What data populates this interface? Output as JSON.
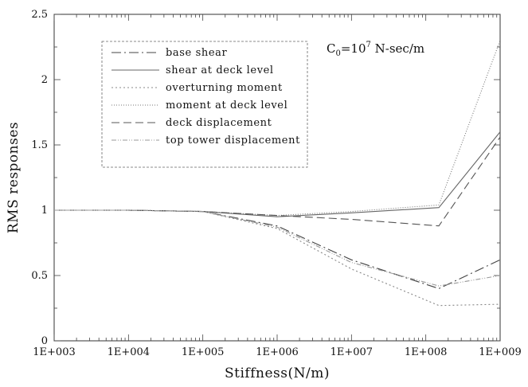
{
  "chart_data": {
    "type": "line",
    "xlabel": "Stiffness(N/m)",
    "ylabel": "RMS responses",
    "x_scale": "log",
    "x_ticks": [
      "1E+003",
      "1E+004",
      "1E+005",
      "1E+006",
      "1E+007",
      "1E+008",
      "1E+009"
    ],
    "xlim": [
      1000,
      1000000000
    ],
    "ylim": [
      0,
      2.5
    ],
    "y_ticks": [
      "0",
      "0.5",
      "1",
      "1.5",
      "2",
      "2.5"
    ],
    "annotation": {
      "base": "C",
      "sub": "0",
      "eq": "=10",
      "sup": "7",
      "unit": " N-sec/m"
    },
    "legend_position": "top-left",
    "grid": false,
    "series": [
      {
        "name": "base shear",
        "color": "#444444",
        "dash": "12,4,2,4",
        "x": [
          1000,
          10000,
          100000,
          1000000,
          10000000,
          150000000,
          1000000000
        ],
        "y": [
          1.0,
          1.0,
          0.99,
          0.88,
          0.62,
          0.4,
          0.62
        ]
      },
      {
        "name": "shear at deck level",
        "color": "#666666",
        "dash": "none",
        "x": [
          1000,
          10000,
          100000,
          1000000,
          10000000,
          150000000,
          1000000000
        ],
        "y": [
          1.0,
          1.0,
          0.99,
          0.95,
          0.98,
          1.02,
          1.6
        ]
      },
      {
        "name": "overturning moment",
        "color": "#888888",
        "dash": "2,3",
        "x": [
          1000,
          10000,
          100000,
          1000000,
          10000000,
          150000000,
          1000000000
        ],
        "y": [
          1.0,
          1.0,
          0.99,
          0.86,
          0.55,
          0.27,
          0.28
        ]
      },
      {
        "name": "moment at deck level",
        "color": "#777777",
        "dash": "1,2",
        "x": [
          1000,
          10000,
          100000,
          1000000,
          10000000,
          150000000,
          1000000000
        ],
        "y": [
          1.0,
          1.0,
          0.99,
          0.96,
          0.99,
          1.04,
          2.3
        ]
      },
      {
        "name": "deck displacement",
        "color": "#555555",
        "dash": "10,5",
        "x": [
          1000,
          10000,
          100000,
          1000000,
          10000000,
          150000000,
          1000000000
        ],
        "y": [
          1.0,
          1.0,
          0.99,
          0.96,
          0.93,
          0.88,
          1.56
        ]
      },
      {
        "name": "top tower displacement",
        "color": "#999999",
        "dash": "6,2,1,2,1,2",
        "x": [
          1000,
          10000,
          100000,
          1000000,
          10000000,
          150000000,
          1000000000
        ],
        "y": [
          1.0,
          1.0,
          0.99,
          0.87,
          0.6,
          0.42,
          0.5
        ]
      }
    ]
  }
}
